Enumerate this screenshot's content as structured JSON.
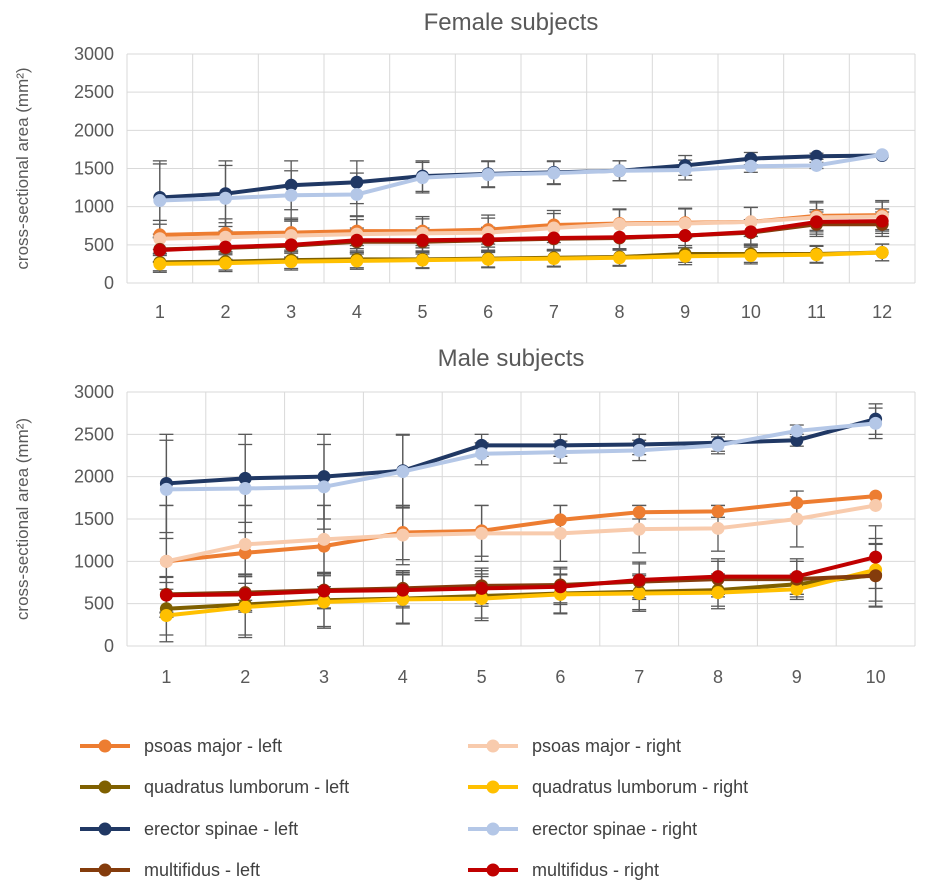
{
  "chart_data": [
    {
      "type": "line",
      "title": "Female subjects",
      "ylabel": "cross-sectional area (mm²)",
      "xlabel": "",
      "ylim": [
        0,
        3000
      ],
      "yticks": [
        0,
        500,
        1000,
        1500,
        2000,
        2500,
        3000
      ],
      "categories": [
        "1",
        "2",
        "3",
        "4",
        "5",
        "6",
        "7",
        "8",
        "9",
        "10",
        "11",
        "12"
      ],
      "grid": true,
      "series": [
        {
          "name": "psoas major - left",
          "color": "#ED7D31",
          "values": [
            630,
            650,
            660,
            680,
            680,
            700,
            760,
            780,
            790,
            800,
            880,
            890
          ],
          "err": [
            190,
            190,
            190,
            190,
            190,
            190,
            190,
            190,
            190,
            190,
            190,
            190
          ]
        },
        {
          "name": "psoas major - right",
          "color": "#F8CBAD",
          "values": [
            580,
            600,
            620,
            640,
            650,
            660,
            720,
            770,
            780,
            800,
            860,
            870
          ],
          "err": [
            190,
            190,
            190,
            190,
            190,
            190,
            190,
            190,
            190,
            190,
            190,
            190
          ]
        },
        {
          "name": "quadratus lumborum - left",
          "color": "#7F6000",
          "values": [
            270,
            280,
            300,
            310,
            310,
            320,
            330,
            340,
            380,
            380,
            380,
            400
          ],
          "err": [
            110,
            110,
            110,
            110,
            110,
            110,
            110,
            110,
            110,
            110,
            110,
            110
          ]
        },
        {
          "name": "quadratus lumborum - right",
          "color": "#FFC000",
          "values": [
            250,
            260,
            280,
            290,
            300,
            310,
            320,
            330,
            350,
            360,
            370,
            400
          ],
          "err": [
            110,
            110,
            110,
            110,
            110,
            110,
            110,
            110,
            110,
            110,
            110,
            110
          ]
        },
        {
          "name": "erector spinae - left",
          "color": "#203864",
          "values": [
            1120,
            1170,
            1280,
            1320,
            1400,
            1430,
            1450,
            1470,
            1540,
            1630,
            1660,
            1670
          ],
          "err": [
            480,
            430,
            320,
            280,
            200,
            170,
            150,
            130,
            130,
            80,
            40,
            0
          ]
        },
        {
          "name": "erector spinae - right",
          "color": "#B4C7E7",
          "values": [
            1080,
            1110,
            1150,
            1160,
            1380,
            1420,
            1440,
            1470,
            1480,
            1530,
            1540,
            1680
          ],
          "err": [
            480,
            430,
            320,
            280,
            200,
            170,
            150,
            130,
            130,
            80,
            40,
            0
          ]
        },
        {
          "name": "multifidus - left",
          "color": "#843C0C",
          "values": [
            440,
            460,
            490,
            540,
            540,
            560,
            580,
            590,
            620,
            660,
            770,
            770
          ],
          "err": [
            160,
            160,
            160,
            160,
            160,
            160,
            160,
            160,
            160,
            160,
            160,
            160
          ]
        },
        {
          "name": "multifidus - right",
          "color": "#C00000",
          "values": [
            430,
            470,
            500,
            560,
            560,
            570,
            590,
            600,
            620,
            670,
            800,
            810
          ],
          "err": [
            160,
            160,
            160,
            160,
            160,
            160,
            160,
            160,
            160,
            160,
            160,
            160
          ]
        }
      ]
    },
    {
      "type": "line",
      "title": "Male subjects",
      "ylabel": "cross-sectional area (mm²)",
      "xlabel": "",
      "ylim": [
        0,
        3000
      ],
      "yticks": [
        0,
        500,
        1000,
        1500,
        2000,
        2500,
        3000
      ],
      "categories": [
        "1",
        "2",
        "3",
        "4",
        "5",
        "6",
        "7",
        "8",
        "9",
        "10"
      ],
      "grid": true,
      "series": [
        {
          "name": "psoas major - left",
          "color": "#ED7D31",
          "values": [
            1000,
            1100,
            1180,
            1340,
            1360,
            1490,
            1580,
            1590,
            1690,
            1770
          ],
          "err": [
            660,
            560,
            480,
            320,
            300,
            170,
            80,
            70,
            0,
            0
          ]
        },
        {
          "name": "psoas major - right",
          "color": "#F8CBAD",
          "values": [
            1000,
            1200,
            1260,
            1310,
            1330,
            1330,
            1380,
            1390,
            1500,
            1660
          ],
          "err": [
            660,
            460,
            400,
            350,
            330,
            330,
            280,
            270,
            330,
            0
          ]
        },
        {
          "name": "quadratus lumborum - left",
          "color": "#7F6000",
          "values": [
            440,
            490,
            540,
            560,
            590,
            620,
            640,
            660,
            730,
            840
          ],
          "err": [
            310,
            360,
            310,
            290,
            260,
            230,
            210,
            190,
            120,
            370
          ]
        },
        {
          "name": "quadratus lumborum - right",
          "color": "#FFC000",
          "values": [
            360,
            460,
            520,
            550,
            560,
            610,
            620,
            630,
            670,
            900
          ],
          "err": [
            310,
            360,
            310,
            290,
            260,
            230,
            210,
            190,
            120,
            370
          ]
        },
        {
          "name": "erector spinae - left",
          "color": "#203864",
          "values": [
            1920,
            1980,
            2000,
            2070,
            2370,
            2370,
            2380,
            2400,
            2430,
            2680
          ],
          "err": [
            580,
            520,
            500,
            430,
            130,
            130,
            120,
            100,
            70,
            180
          ]
        },
        {
          "name": "erector spinae - right",
          "color": "#B4C7E7",
          "values": [
            1850,
            1860,
            1880,
            2060,
            2270,
            2290,
            2310,
            2370,
            2540,
            2630
          ],
          "err": [
            580,
            520,
            500,
            430,
            130,
            130,
            120,
            100,
            70,
            180
          ]
        },
        {
          "name": "multifidus - left",
          "color": "#843C0C",
          "values": [
            610,
            630,
            660,
            680,
            710,
            720,
            760,
            790,
            790,
            830
          ],
          "err": [
            210,
            210,
            210,
            210,
            210,
            210,
            210,
            210,
            210,
            370
          ]
        },
        {
          "name": "multifidus - right",
          "color": "#C00000",
          "values": [
            600,
            610,
            650,
            660,
            680,
            700,
            780,
            820,
            820,
            1050
          ],
          "err": [
            210,
            210,
            210,
            210,
            210,
            210,
            210,
            210,
            210,
            370
          ]
        }
      ]
    }
  ],
  "legend": {
    "placement": "bottom",
    "items": [
      {
        "label": "psoas major - left",
        "color": "#ED7D31"
      },
      {
        "label": "psoas major - right",
        "color": "#F8CBAD"
      },
      {
        "label": "quadratus lumborum - left",
        "color": "#7F6000"
      },
      {
        "label": "quadratus lumborum - right",
        "color": "#FFC000"
      },
      {
        "label": "erector spinae - left",
        "color": "#203864"
      },
      {
        "label": "erector spinae - right",
        "color": "#B4C7E7"
      },
      {
        "label": "multifidus - left",
        "color": "#843C0C"
      },
      {
        "label": "multifidus - right",
        "color": "#C00000"
      }
    ]
  }
}
